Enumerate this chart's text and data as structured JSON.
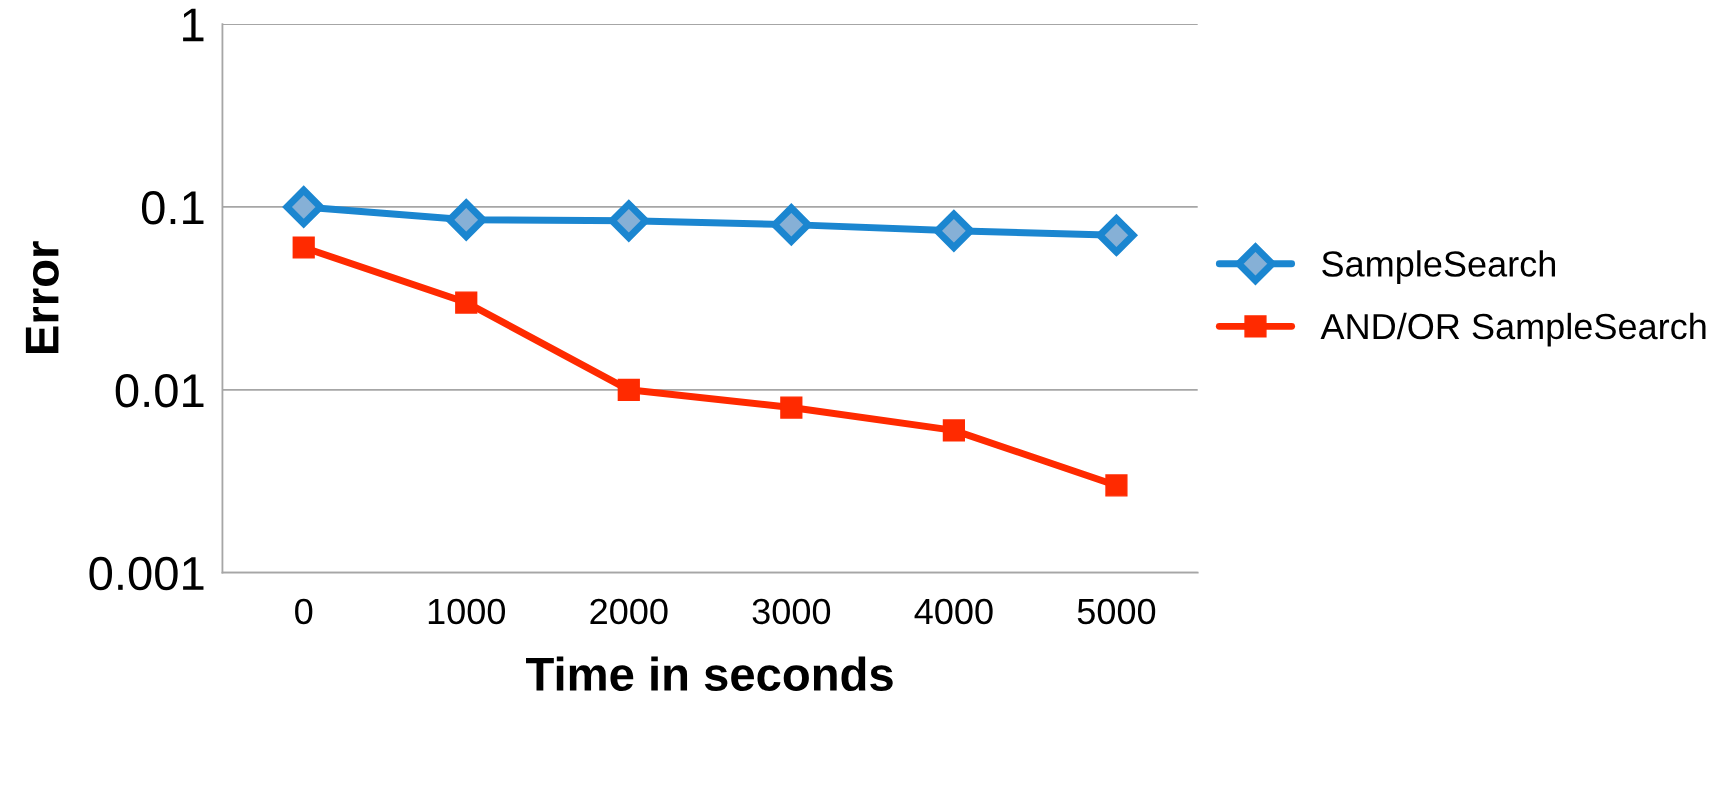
{
  "chart_data": {
    "type": "line",
    "xlabel": "Time in seconds",
    "ylabel": "Error",
    "categories": [
      "0",
      "1000",
      "2000",
      "3000",
      "4000",
      "5000"
    ],
    "log": "y",
    "ylim": [
      0.001,
      1
    ],
    "yticks": [
      0.001,
      0.01,
      0.1,
      1
    ],
    "grid": "y",
    "legend": "right",
    "series": [
      {
        "name": "SampleSearch",
        "color": "#1b86d0",
        "marker": "diamond",
        "values": [
          0.1,
          0.085,
          0.084,
          0.08,
          0.074,
          0.07
        ]
      },
      {
        "name": "AND/OR SampleSearch",
        "color": "#ff2a00",
        "marker": "square",
        "values": [
          0.06,
          0.03,
          0.01,
          0.008,
          0.006,
          0.003
        ]
      }
    ]
  }
}
